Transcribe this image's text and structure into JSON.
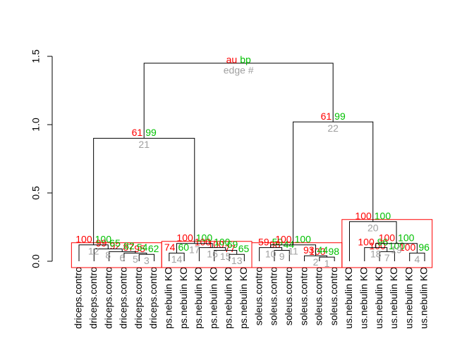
{
  "chart_data": {
    "type": "dendrogram",
    "legend": {
      "au": "au",
      "bp": "bp",
      "edge": "edge #"
    },
    "colors": {
      "au": "#ff0000",
      "bp": "#00c000",
      "edge": "#a0a0a0",
      "rect": "#ff0000",
      "tree": "#000000"
    },
    "ylim": [
      0,
      1.5
    ],
    "yticks": [
      {
        "value": 0,
        "label": "0.0"
      },
      0.5,
      {
        "value": 1,
        "label": "1.0"
      },
      1.5
    ],
    "labels": [
      "driceps.contro",
      "driceps.contro",
      "driceps.contro",
      "driceps.contro",
      "driceps.contro",
      "driceps.contro",
      "ps.nebulin KO",
      "ps.nebulin KO",
      "ps.nebulin KO",
      "ps.nebulin KO",
      "ps.nebulin KO",
      "ps.nebulin KO",
      "soleus.contro",
      "soleus.contro",
      "soleus.contro",
      "soleus.contro",
      "soleus.contro",
      "soleus.contro",
      "us.nebulin KO",
      "us.nebulin KO",
      "us.nebulin KO",
      "us.nebulin KO",
      "us.nebulin KO",
      "us.nebulin KO"
    ],
    "merges": [
      {
        "left": -17,
        "right": -18,
        "height": 0.03,
        "au": 100,
        "bp": 98,
        "edge": 1
      },
      {
        "left": -16,
        "right": 1,
        "height": 0.04,
        "au": 93,
        "bp": 44,
        "edge": 2
      },
      {
        "left": -4,
        "right": -5,
        "height": 0.05,
        "au": 95,
        "bp": 62,
        "edge": 3
      },
      {
        "left": -23,
        "right": -24,
        "height": 0.06,
        "au": 100,
        "bp": 96,
        "edge": 4
      },
      {
        "left": -6,
        "right": 3,
        "height": 0.06,
        "au": 87,
        "bp": 54,
        "edge": 5
      },
      {
        "left": -3,
        "right": 5,
        "height": 0.07,
        "au": 92,
        "bp": 82,
        "edge": 6
      },
      {
        "left": -21,
        "right": -22,
        "height": 0.07,
        "au": 100,
        "bp": 100,
        "edge": 7
      },
      {
        "left": -2,
        "right": 6,
        "height": 0.09,
        "au": 99,
        "bp": 65,
        "edge": 8
      },
      {
        "left": -14,
        "right": -15,
        "height": 0.08,
        "au": 98,
        "bp": 44,
        "edge": 9
      },
      {
        "left": -13,
        "right": 9,
        "height": 0.1,
        "au": 59,
        "bp": 59,
        "edge": 10
      },
      {
        "left": 10,
        "right": 2,
        "height": 0.12,
        "au": 100,
        "bp": 100,
        "edge": 11
      },
      {
        "left": -1,
        "right": 8,
        "height": 0.12,
        "au": 100,
        "bp": 100,
        "edge": 12
      },
      {
        "left": -10,
        "right": -11,
        "height": 0.05,
        "au": 77,
        "bp": 65,
        "edge": 13
      },
      {
        "left": -7,
        "right": -8,
        "height": 0.06,
        "au": 74,
        "bp": 60,
        "edge": 14
      },
      {
        "left": -12,
        "right": 13,
        "height": 0.08,
        "au": 100,
        "bp": 69,
        "edge": 15
      },
      {
        "left": -9,
        "right": 15,
        "height": 0.1,
        "au": 100,
        "bp": 100,
        "edge": 16
      },
      {
        "left": 14,
        "right": 16,
        "height": 0.13,
        "au": 100,
        "bp": 100,
        "edge": 17
      },
      {
        "left": -20,
        "right": 7,
        "height": 0.1,
        "au": 100,
        "bp": 96,
        "edge": 18
      },
      {
        "left": 18,
        "right": 4,
        "height": 0.13,
        "au": 100,
        "bp": 100,
        "edge": 19
      },
      {
        "left": -19,
        "right": 19,
        "height": 0.29,
        "au": 100,
        "bp": 100,
        "edge": 20
      },
      {
        "left": 12,
        "right": 17,
        "height": 0.9,
        "au": 61,
        "bp": 99,
        "edge": 21
      },
      {
        "left": 11,
        "right": 20,
        "height": 1.02,
        "au": 61,
        "bp": 99,
        "edge": 22
      },
      {
        "left": 21,
        "right": 22,
        "height": 1.45,
        "au": null,
        "bp": null,
        "edge": null
      }
    ],
    "rect_merges": [
      12,
      17,
      11,
      20
    ]
  }
}
